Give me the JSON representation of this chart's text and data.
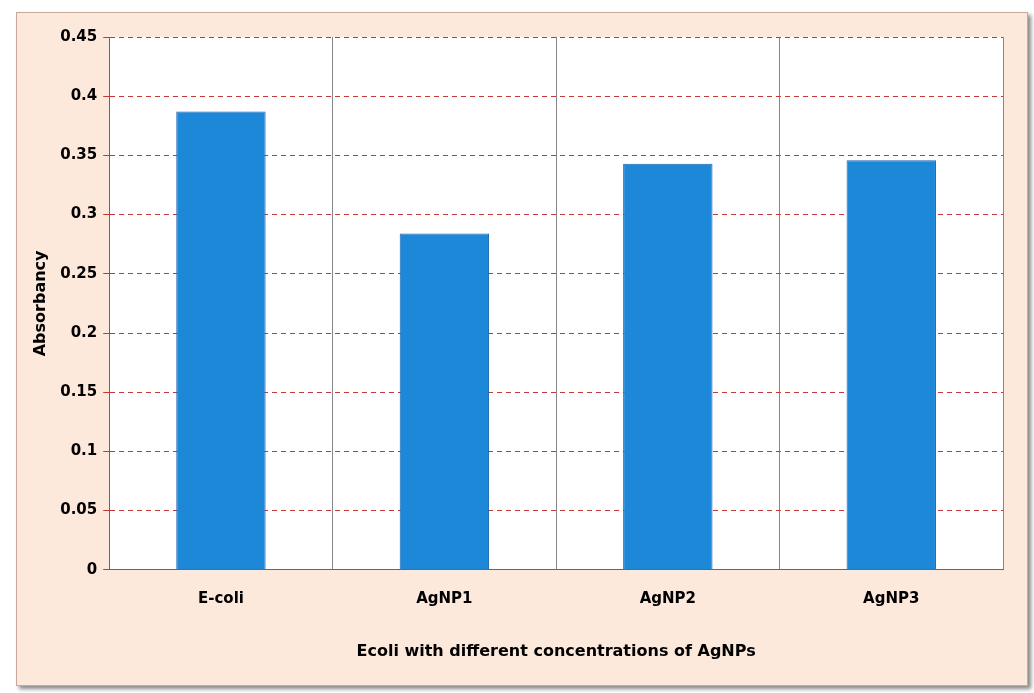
{
  "chart_data": {
    "type": "bar",
    "xlabel": "Ecoli with different concentrations of AgNPs",
    "ylabel": "Absorbancy",
    "categories": [
      "E-coli",
      "AgNP1",
      "AgNP2",
      "AgNP3"
    ],
    "values": [
      0.387,
      0.284,
      0.343,
      0.346
    ],
    "color": "#1e88d8",
    "ylim": [
      0,
      0.45
    ],
    "yticks": [
      0,
      0.05,
      0.1,
      0.15,
      0.2,
      0.25,
      0.3,
      0.35,
      0.4,
      0.45
    ],
    "grid": true,
    "legend": false
  }
}
